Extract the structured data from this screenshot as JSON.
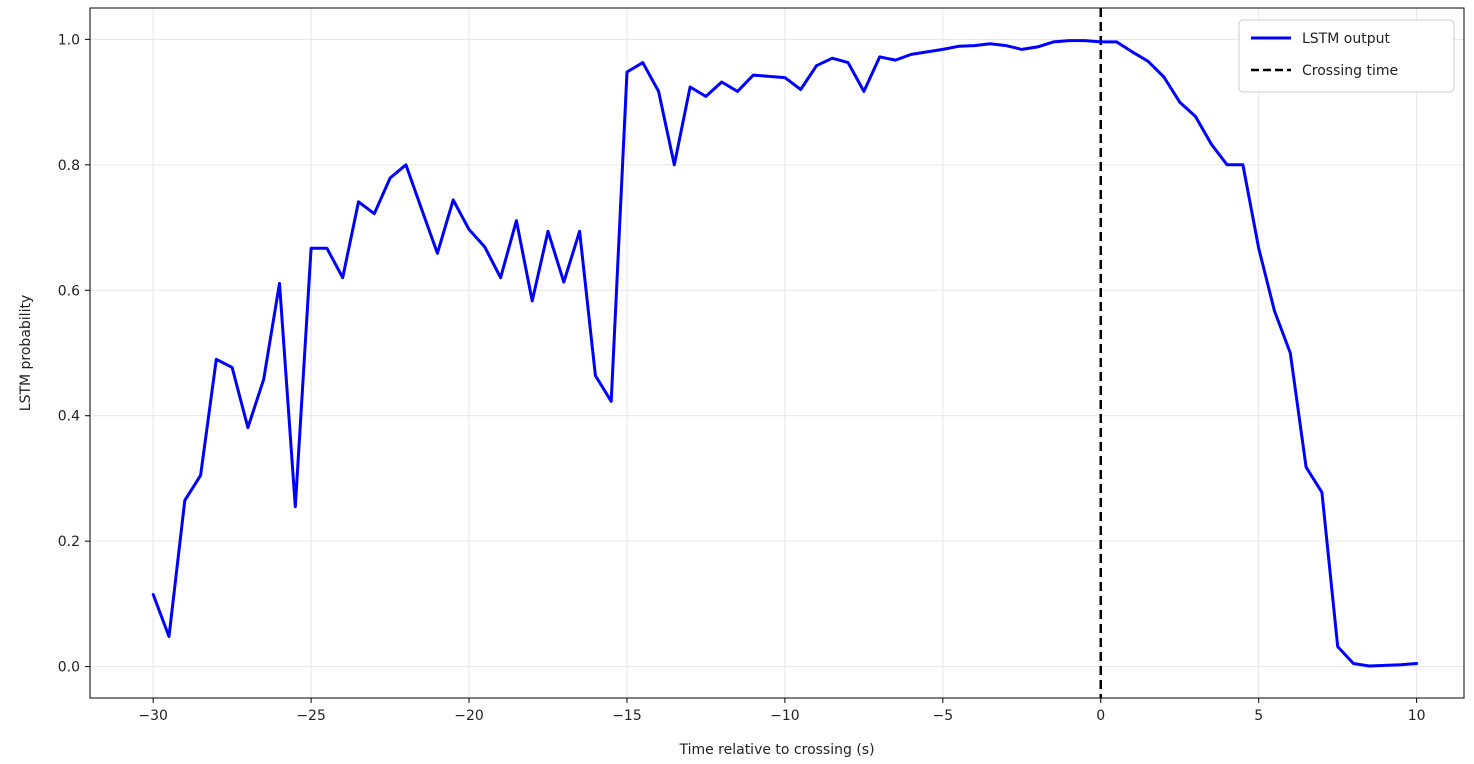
{
  "chart_data": {
    "type": "line",
    "title": "",
    "xlabel": "Time relative to crossing (s)",
    "ylabel": "LSTM probability",
    "xlim": [
      -32,
      11.5
    ],
    "ylim": [
      -0.05,
      1.05
    ],
    "xticks": [
      -30,
      -25,
      -20,
      -15,
      -10,
      -5,
      0,
      5,
      10
    ],
    "xtick_labels": [
      "−30",
      "−25",
      "−20",
      "−15",
      "−10",
      "−5",
      "0",
      "5",
      "10"
    ],
    "yticks": [
      0.0,
      0.2,
      0.4,
      0.6,
      0.8,
      1.0
    ],
    "ytick_labels": [
      "0.0",
      "0.2",
      "0.4",
      "0.6",
      "0.8",
      "1.0"
    ],
    "grid": true,
    "legend_position": "top-right",
    "series": [
      {
        "name": "LSTM output",
        "color": "#0000ff",
        "style": "solid",
        "x": [
          -30,
          -29.5,
          -29,
          -28.5,
          -28,
          -27.5,
          -27,
          -26.5,
          -26,
          -25.5,
          -25,
          -24.5,
          -24,
          -23.5,
          -23,
          -22.5,
          -22,
          -21.5,
          -21,
          -20.5,
          -20,
          -19.5,
          -19,
          -18.5,
          -18,
          -17.5,
          -17,
          -16.5,
          -16,
          -15.5,
          -15,
          -14.5,
          -14,
          -13.5,
          -13,
          -12.5,
          -12,
          -11.5,
          -11,
          -10.5,
          -10,
          -9.5,
          -9,
          -8.5,
          -8,
          -7.5,
          -7,
          -6.5,
          -6,
          -5.5,
          -5,
          -4.5,
          -4,
          -3.5,
          -3,
          -2.5,
          -2,
          -1.5,
          -1,
          -0.5,
          0,
          0.5,
          1,
          1.5,
          2,
          2.5,
          3,
          3.5,
          4,
          4.5,
          5,
          5.5,
          6,
          6.5,
          7,
          7.5,
          8,
          8.5,
          9,
          9.5,
          10
        ],
        "y": [
          0.115,
          0.048,
          0.265,
          0.305,
          0.49,
          0.477,
          0.381,
          0.458,
          0.611,
          0.255,
          0.667,
          0.667,
          0.62,
          0.741,
          0.722,
          0.779,
          0.8,
          0.729,
          0.659,
          0.744,
          0.697,
          0.669,
          0.62,
          0.711,
          0.583,
          0.694,
          0.613,
          0.694,
          0.464,
          0.423,
          0.948,
          0.963,
          0.917,
          0.8,
          0.924,
          0.909,
          0.932,
          0.917,
          0.943,
          0.941,
          0.939,
          0.92,
          0.958,
          0.97,
          0.963,
          0.917,
          0.972,
          0.967,
          0.976,
          0.98,
          0.984,
          0.989,
          0.99,
          0.993,
          0.99,
          0.984,
          0.988,
          0.996,
          0.998,
          0.998,
          0.996,
          0.996,
          0.98,
          0.965,
          0.94,
          0.9,
          0.877,
          0.833,
          0.8,
          0.8,
          0.667,
          0.567,
          0.5,
          0.318,
          0.278,
          0.032,
          0.005,
          0.001,
          0.002,
          0.003,
          0.005
        ]
      },
      {
        "name": "Crossing time",
        "color": "#000000",
        "style": "dashed",
        "vline_x": 0
      }
    ]
  }
}
